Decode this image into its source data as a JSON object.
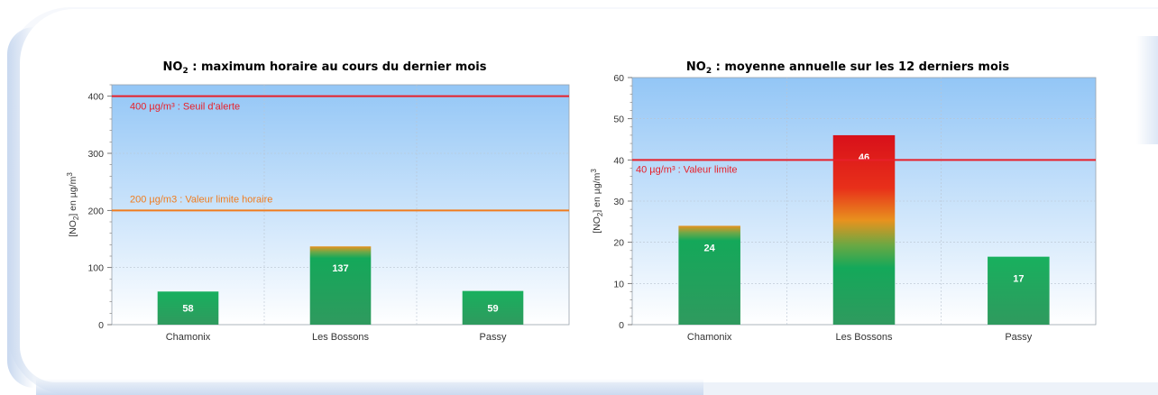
{
  "chart_data": [
    {
      "type": "bar",
      "title_prefix": "NO",
      "title_subscript": "2",
      "title_suffix": " : maximum horaire au cours du dernier mois",
      "ylabel_prefix": "[NO",
      "ylabel_subscript": "2",
      "ylabel_suffix": "] en µg/m",
      "ylabel_superscript": "3",
      "categories": [
        "Chamonix",
        "Les Bossons",
        "Passy"
      ],
      "values": [
        58,
        137,
        59
      ],
      "value_labels": [
        "58",
        "137",
        "59"
      ],
      "ylim": [
        0,
        420
      ],
      "yticks": [
        0,
        100,
        200,
        300,
        400
      ],
      "ytick_labels": [
        "0",
        "100",
        "200",
        "300",
        "400"
      ],
      "grid": true,
      "reference_lines": [
        {
          "value": 400,
          "label": "400 µg/m³ : Seuil d'alerte",
          "color": "#e8202a"
        },
        {
          "value": 200,
          "label": "200 µg/m3 : Valeur limite horaire",
          "color": "#f07c1e"
        }
      ]
    },
    {
      "type": "bar",
      "title_prefix": "NO",
      "title_subscript": "2",
      "title_suffix": " : moyenne annuelle sur les 12 derniers mois",
      "ylabel_prefix": "[NO",
      "ylabel_subscript": "2",
      "ylabel_suffix": "] en µg/m",
      "ylabel_superscript": "3",
      "categories": [
        "Chamonix",
        "Les Bossons",
        "Passy"
      ],
      "values": [
        24,
        46,
        16.5
      ],
      "value_labels": [
        "24",
        "46",
        "17"
      ],
      "ylim": [
        0,
        60
      ],
      "yticks": [
        0,
        10,
        20,
        30,
        40,
        50,
        60
      ],
      "ytick_labels": [
        "0",
        "10",
        "20",
        "30",
        "40",
        "50",
        "60"
      ],
      "grid": true,
      "reference_lines": [
        {
          "value": 40,
          "label": "40 µg/m³ : Valeur limite",
          "color": "#e8202a"
        }
      ]
    }
  ],
  "colors": {
    "bar_green": "#14a85a",
    "bar_orange": "#e8921e",
    "bar_red": "#d8101a",
    "plot_top": "#93c6f6",
    "plot_bottom": "#ffffff"
  }
}
